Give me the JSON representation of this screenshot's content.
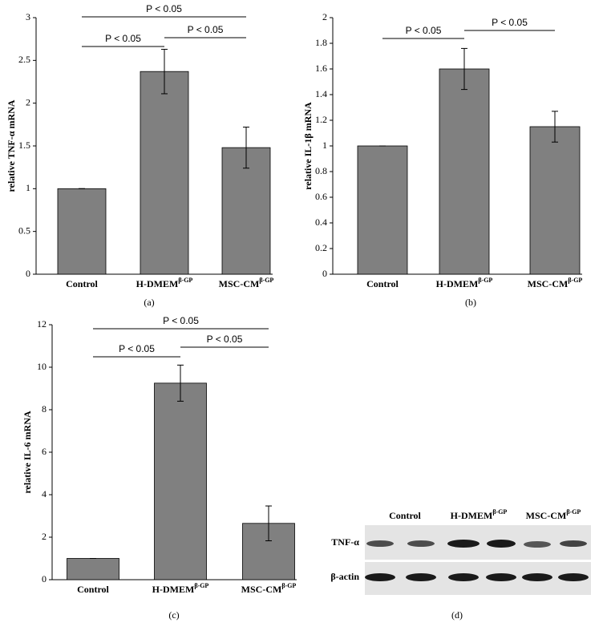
{
  "chart_data": [
    {
      "type": "bar",
      "caption": "(a)",
      "ylabel": "relative TNF-α mRNA",
      "categories": [
        "Control",
        "H-DMEM",
        "MSC-CM"
      ],
      "category_superscripts": [
        null,
        "β-GP",
        "β-GP"
      ],
      "values": [
        1,
        2.37,
        1.48
      ],
      "errors": [
        0,
        0.26,
        0.24
      ],
      "color": "#808080",
      "ylim": [
        0,
        3
      ],
      "yticks": [
        0,
        0.5,
        1,
        1.5,
        2,
        2.5,
        3
      ],
      "annotations": [
        {
          "text": "P < 0.05",
          "between": [
            0,
            2
          ]
        },
        {
          "text": "P < 0.05",
          "between": [
            0,
            1
          ]
        },
        {
          "text": "P < 0.05",
          "between": [
            1,
            2
          ]
        }
      ]
    },
    {
      "type": "bar",
      "caption": "(b)",
      "ylabel": "relative IL-1β mRNA",
      "categories": [
        "Control",
        "H-DMEM",
        "MSC-CM"
      ],
      "category_superscripts": [
        null,
        "β-GP",
        "β-GP"
      ],
      "values": [
        1,
        1.6,
        1.15
      ],
      "errors": [
        0,
        0.16,
        0.12
      ],
      "color": "#808080",
      "ylim": [
        0,
        2
      ],
      "yticks": [
        0,
        0.2,
        0.4,
        0.6,
        0.8,
        1,
        1.2,
        1.4,
        1.6,
        1.8,
        2
      ],
      "annotations": [
        {
          "text": "P < 0.05",
          "between": [
            0,
            1
          ]
        },
        {
          "text": "P < 0.05",
          "between": [
            1,
            2
          ]
        }
      ]
    },
    {
      "type": "bar",
      "caption": "(c)",
      "ylabel": "relative IL-6 mRNA",
      "categories": [
        "Control",
        "H-DMEM",
        "MSC-CM"
      ],
      "category_superscripts": [
        null,
        "β-GP",
        "β-GP"
      ],
      "values": [
        1,
        9.25,
        2.65
      ],
      "errors": [
        0,
        0.85,
        0.82
      ],
      "color": "#808080",
      "ylim": [
        0,
        12
      ],
      "yticks": [
        0,
        2,
        4,
        6,
        8,
        10,
        12
      ],
      "annotations": [
        {
          "text": "P < 0.05",
          "between": [
            0,
            2
          ]
        },
        {
          "text": "P < 0.05",
          "between": [
            0,
            1
          ]
        },
        {
          "text": "P < 0.05",
          "between": [
            1,
            2
          ]
        }
      ]
    }
  ],
  "blot": {
    "caption": "(d)",
    "columns": [
      "Control",
      "H-DMEM",
      "MSC-CM"
    ],
    "column_superscripts": [
      null,
      "β-GP",
      "β-GP"
    ],
    "rows": [
      "TNF-α",
      "β-actin"
    ]
  }
}
